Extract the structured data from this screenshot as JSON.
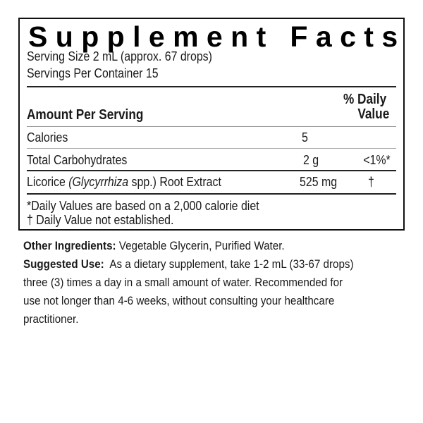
{
  "facts": {
    "title": "Supplement Facts",
    "serving_size": "Serving Size 2 mL (approx. 67 drops)",
    "servings_per_container": "Servings Per Container 15",
    "amount_header": "Amount Per Serving",
    "dv_header_line1": "% Daily",
    "dv_header_line2": "Value",
    "rows": [
      {
        "name": "Calories",
        "amount": "5",
        "dv": ""
      },
      {
        "name": "Total Carbohydrates",
        "amount": "2 g",
        "dv": "<1%*"
      },
      {
        "name_prefix": "Licorice ",
        "name_italic": "(Glycyrrhiza",
        "name_mid": " spp.)",
        "name_suffix": " Root Extract",
        "amount": "525 mg",
        "dv": "†"
      }
    ],
    "footnote1": "*Daily Values are based on a 2,000 calorie diet",
    "footnote2": "† Daily Value not established."
  },
  "other_ingredients": {
    "label": "Other Ingredients:",
    "text": " Vegetable Glycerin, Purified Water."
  },
  "suggested_use": {
    "label": "Suggested Use:",
    "lines": [
      "  As a dietary supplement, take 1-2 mL (33-67 drops)",
      "three (3) times a day in a small amount of water. Recommended for",
      "use not longer than 4-6 weeks, without consulting your healthcare",
      "practitioner."
    ]
  }
}
